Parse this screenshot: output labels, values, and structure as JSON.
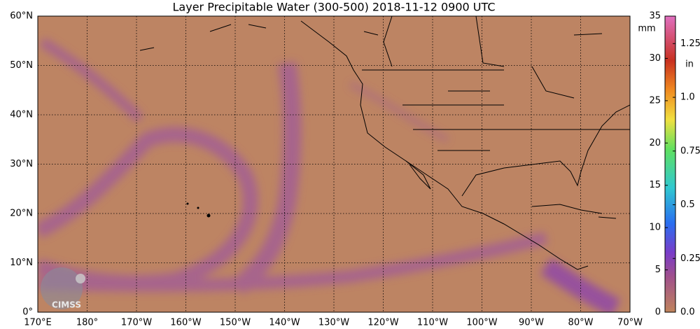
{
  "title": "Layer Precipitable Water (300-500)  2018-11-12 0900 UTC",
  "map": {
    "lon_labels": [
      "170°E",
      "180°",
      "170°W",
      "160°W",
      "150°W",
      "140°W",
      "130°W",
      "120°W",
      "110°W",
      "100°W",
      "90°W",
      "80°W",
      "70°W"
    ],
    "lat_labels": [
      "60°N",
      "50°N",
      "40°N",
      "30°N",
      "20°N",
      "10°N",
      "0°"
    ]
  },
  "colorbar": {
    "mm_unit": "mm",
    "in_unit": "in",
    "mm_range": [
      0,
      35
    ],
    "mm_ticks": [
      0,
      5,
      10,
      15,
      20,
      25,
      30,
      35
    ],
    "in_range": [
      0,
      1.378
    ],
    "in_ticks": [
      {
        "value": 0,
        "label": "0.0"
      },
      {
        "value": 0.25,
        "label": "0.25"
      },
      {
        "value": 0.5,
        "label": "0.5"
      },
      {
        "value": 0.75,
        "label": "0.75"
      },
      {
        "value": 1.0,
        "label": "1.0"
      },
      {
        "value": 1.25,
        "label": "1.25"
      }
    ]
  },
  "logo": "CIMSS"
}
